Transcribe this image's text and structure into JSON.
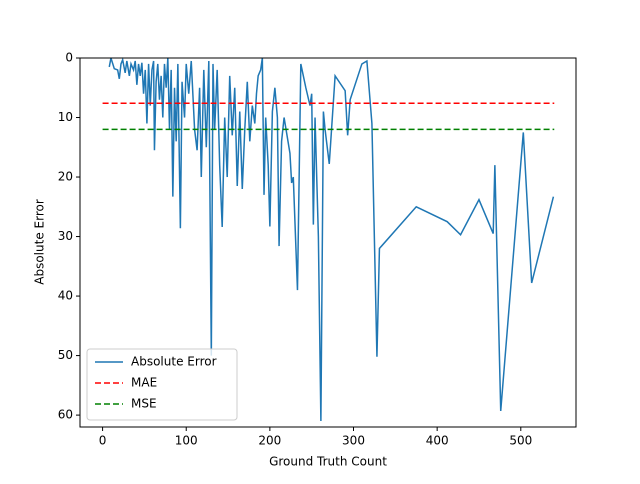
{
  "chart_data": {
    "type": "line",
    "xlabel": "Ground Truth Count",
    "ylabel": "Absolute Error",
    "xlim": [
      -27,
      566
    ],
    "ylim": [
      0,
      62
    ],
    "y_inverted": true,
    "xticks": [
      0,
      100,
      200,
      300,
      400,
      500
    ],
    "yticks": [
      0,
      10,
      20,
      30,
      40,
      50,
      60
    ],
    "legend": "lower left",
    "series": [
      {
        "name": "Absolute Error",
        "color": "#1f77b4",
        "linestyle": "solid",
        "x": [
          8,
          10,
          14,
          18,
          20,
          22,
          24,
          27,
          29,
          32,
          34,
          37,
          39,
          41,
          43,
          45,
          47,
          49,
          51,
          53,
          55,
          57,
          59,
          61,
          62,
          64,
          66,
          68,
          70,
          72,
          74,
          76,
          78,
          80,
          82,
          84,
          86,
          88,
          90,
          93,
          95,
          98,
          100,
          103,
          106,
          110,
          113,
          116,
          118,
          121,
          124,
          127,
          130,
          132,
          134,
          137,
          140,
          143,
          146,
          149,
          152,
          155,
          158,
          161,
          164,
          167,
          170,
          173,
          176,
          179,
          182,
          184,
          186,
          189,
          191,
          193,
          195,
          198,
          200,
          203,
          206,
          209,
          211,
          214,
          217,
          224,
          226,
          228,
          233,
          237,
          243,
          248,
          250,
          252,
          254,
          258,
          261,
          264,
          266,
          271,
          278,
          290,
          293,
          296,
          310,
          316,
          322,
          328,
          331,
          375,
          412,
          428,
          450,
          467,
          469,
          476,
          503,
          513,
          539
        ],
        "values": [
          1.5,
          0,
          1.8,
          2,
          3.5,
          1,
          0.3,
          2.5,
          0.5,
          3,
          1,
          2,
          0.5,
          4.5,
          1,
          3,
          0.8,
          6,
          2,
          11,
          1,
          8,
          2,
          0.5,
          15.5,
          4,
          1,
          7,
          3,
          10,
          1,
          5,
          0,
          12,
          2,
          23.3,
          5,
          14,
          1,
          28.6,
          4,
          10,
          1,
          6,
          0.5,
          12,
          15.5,
          5,
          20,
          2,
          15,
          0.5,
          50,
          1,
          12,
          2,
          18,
          28.4,
          10,
          20,
          3,
          13,
          5,
          21.5,
          9,
          22,
          12,
          4,
          14,
          8,
          11,
          6,
          3,
          2,
          0,
          23,
          10,
          18,
          28.3,
          9,
          5,
          10,
          31.6,
          14,
          10,
          16,
          21,
          20,
          39,
          1,
          5,
          8,
          6,
          28,
          10,
          30,
          61,
          9,
          12,
          17.8,
          3,
          5.5,
          13,
          7,
          1,
          0.5,
          11,
          50.2,
          32,
          25,
          27.5,
          29.7,
          23.8,
          29.5,
          18,
          59.3,
          12.5,
          37.8,
          23.3
        ]
      },
      {
        "name": "MAE",
        "color": "#ff0000",
        "linestyle": "dashed",
        "x": [
          0,
          540
        ],
        "values": [
          7.6,
          7.6
        ]
      },
      {
        "name": "MSE",
        "color": "#008000",
        "linestyle": "dashed",
        "x": [
          0,
          540
        ],
        "values": [
          12,
          12
        ]
      }
    ]
  }
}
